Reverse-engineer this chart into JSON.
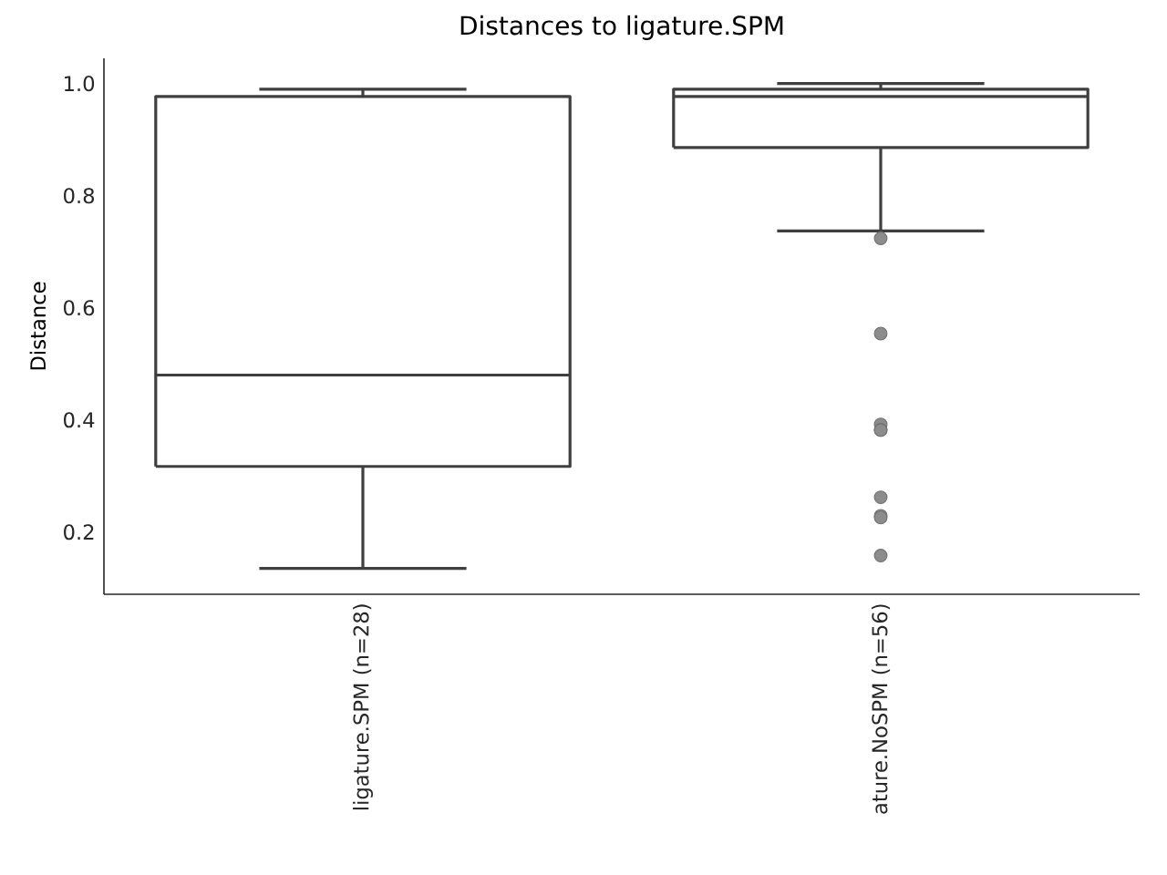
{
  "chart_data": {
    "type": "box",
    "title": "Distances to ligature.SPM",
    "ylabel": "Distance",
    "categories": [
      "ligature.SPM (n=28)",
      "ature.NoSPM (n=56)"
    ],
    "boxes": [
      {
        "low": 0.135,
        "q1": 0.317,
        "median": 0.48,
        "q3": 0.977,
        "high": 0.99
      },
      {
        "low": 0.737,
        "q1": 0.886,
        "median": 0.977,
        "q3": 0.99,
        "high": 1.0,
        "outliers": [
          0.724,
          0.554,
          0.392,
          0.382,
          0.382,
          0.262,
          0.229,
          0.226,
          0.158
        ]
      }
    ],
    "ylim": [
      0.089,
      1.045
    ],
    "yticks": [
      {
        "value": 0.2,
        "label": "0.2"
      },
      {
        "value": 0.4,
        "label": "0.4"
      },
      {
        "value": 0.6,
        "label": "0.6"
      },
      {
        "value": 0.8,
        "label": "0.8"
      },
      {
        "value": 1.0,
        "label": "1.0"
      }
    ]
  }
}
